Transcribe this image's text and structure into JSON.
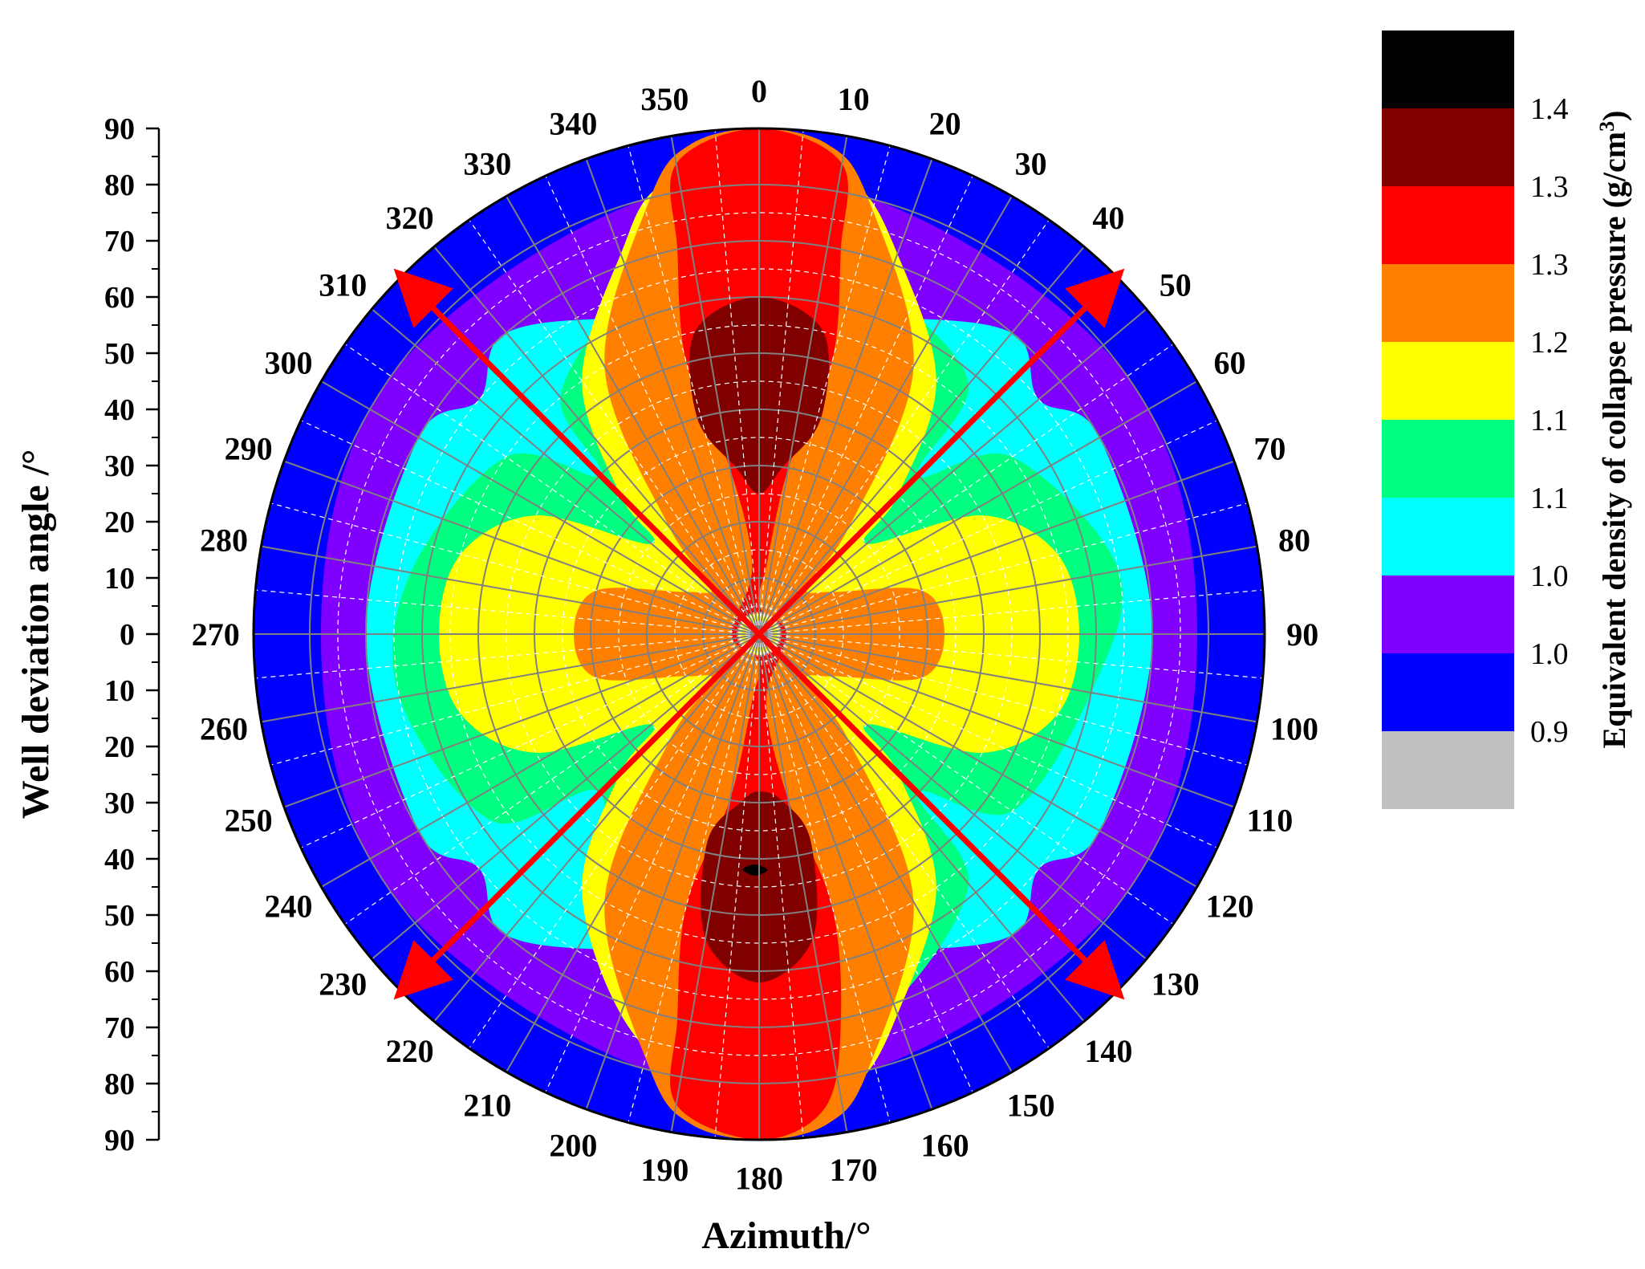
{
  "chart_data": {
    "type": "heatmap",
    "subtype": "polar-contour",
    "title": "",
    "xlabel": "Azimuth/°",
    "ylabel": "Well deviation angle /°",
    "colorbar_label": "Equivalent density of collapse pressure (g/cm",
    "colorbar_label_sup": "3",
    "colorbar_label_tail": ")",
    "azimuth_ticks": [
      "0",
      "10",
      "20",
      "30",
      "40",
      "50",
      "60",
      "70",
      "80",
      "90",
      "100",
      "110",
      "120",
      "130",
      "140",
      "150",
      "160",
      "170",
      "180",
      "190",
      "200",
      "210",
      "220",
      "230",
      "240",
      "250",
      "260",
      "270",
      "280",
      "290",
      "300",
      "310",
      "320",
      "330",
      "340",
      "350"
    ],
    "deviation_ticks": [
      "90",
      "80",
      "70",
      "60",
      "50",
      "40",
      "30",
      "20",
      "10",
      "0",
      "10",
      "20",
      "30",
      "40",
      "50",
      "60",
      "70",
      "80",
      "90"
    ],
    "deviation_range": [
      0,
      90
    ],
    "colorbar_levels": [
      "1.4",
      "1.3",
      "1.3",
      "1.2",
      "1.1",
      "1.1",
      "1.0",
      "1.0",
      "0.9"
    ],
    "colorbar_colors": [
      "#000000",
      "#800000",
      "#ff0000",
      "#ff8000",
      "#ffff00",
      "#00ff80",
      "#00ffff",
      "#8000ff",
      "#0000ff",
      "#c0c0c0"
    ],
    "arrows_azimuth_deg": [
      45,
      135,
      225,
      315
    ],
    "arrow_color": "#ff0000",
    "grid": true,
    "regions": [
      {
        "level": 8,
        "points": [
          [
            90,
            0
          ],
          [
            90,
            90
          ],
          [
            90,
            180
          ],
          [
            90,
            270
          ]
        ]
      },
      {
        "level": 7,
        "points": [
          [
            80,
            15
          ],
          [
            80,
            55
          ],
          [
            78,
            90
          ],
          [
            80,
            125
          ],
          [
            80,
            165
          ],
          [
            80,
            195
          ],
          [
            80,
            235
          ],
          [
            78,
            270
          ],
          [
            80,
            305
          ],
          [
            80,
            345
          ]
        ]
      },
      {
        "level": 6,
        "points": [
          [
            60,
            20
          ],
          [
            70,
            40
          ],
          [
            65,
            50
          ],
          [
            70,
            60
          ],
          [
            70,
            90
          ],
          [
            70,
            120
          ],
          [
            65,
            130
          ],
          [
            70,
            140
          ],
          [
            60,
            160
          ],
          [
            60,
            200
          ],
          [
            70,
            220
          ],
          [
            65,
            230
          ],
          [
            70,
            240
          ],
          [
            70,
            270
          ],
          [
            70,
            300
          ],
          [
            65,
            310
          ],
          [
            70,
            320
          ],
          [
            60,
            340
          ]
        ]
      },
      {
        "level": 5,
        "points": [
          [
            75,
            7
          ],
          [
            65,
            22
          ],
          [
            58,
            40
          ],
          [
            40,
            45
          ],
          [
            55,
            55
          ],
          [
            65,
            80
          ],
          [
            60,
            100
          ],
          [
            55,
            125
          ],
          [
            40,
            135
          ],
          [
            58,
            140
          ],
          [
            70,
            160
          ],
          [
            75,
            175
          ],
          [
            70,
            190
          ],
          [
            60,
            210
          ],
          [
            40,
            225
          ],
          [
            58,
            235
          ],
          [
            65,
            260
          ],
          [
            63,
            280
          ],
          [
            55,
            305
          ],
          [
            40,
            315
          ],
          [
            55,
            320
          ],
          [
            65,
            338
          ],
          [
            75,
            353
          ]
        ]
      },
      {
        "level": 4,
        "points": [
          [
            85,
            2
          ],
          [
            82,
            12
          ],
          [
            72,
            20
          ],
          [
            55,
            35
          ],
          [
            35,
            45
          ],
          [
            25,
            50
          ],
          [
            45,
            62
          ],
          [
            55,
            75
          ],
          [
            57,
            90
          ],
          [
            55,
            105
          ],
          [
            45,
            118
          ],
          [
            25,
            130
          ],
          [
            35,
            135
          ],
          [
            55,
            145
          ],
          [
            72,
            160
          ],
          [
            82,
            168
          ],
          [
            85,
            178
          ],
          [
            82,
            188
          ],
          [
            72,
            200
          ],
          [
            55,
            215
          ],
          [
            35,
            225
          ],
          [
            25,
            230
          ],
          [
            45,
            242
          ],
          [
            55,
            255
          ],
          [
            57,
            270
          ],
          [
            55,
            285
          ],
          [
            45,
            298
          ],
          [
            25,
            310
          ],
          [
            35,
            315
          ],
          [
            55,
            325
          ],
          [
            72,
            340
          ],
          [
            82,
            348
          ]
        ]
      },
      {
        "level": 3,
        "points": [
          [
            90,
            0
          ],
          [
            88,
            8
          ],
          [
            80,
            14
          ],
          [
            55,
            30
          ],
          [
            25,
            40
          ],
          [
            12,
            45
          ],
          [
            15,
            60
          ],
          [
            30,
            75
          ],
          [
            33,
            90
          ],
          [
            30,
            105
          ],
          [
            15,
            120
          ],
          [
            12,
            135
          ],
          [
            25,
            140
          ],
          [
            55,
            150
          ],
          [
            80,
            166
          ],
          [
            88,
            172
          ],
          [
            90,
            180
          ],
          [
            88,
            188
          ],
          [
            80,
            194
          ],
          [
            55,
            210
          ],
          [
            25,
            220
          ],
          [
            12,
            225
          ],
          [
            15,
            240
          ],
          [
            30,
            255
          ],
          [
            33,
            270
          ],
          [
            30,
            285
          ],
          [
            15,
            300
          ],
          [
            12,
            315
          ],
          [
            25,
            320
          ],
          [
            55,
            330
          ],
          [
            80,
            346
          ],
          [
            88,
            352
          ]
        ]
      },
      {
        "level": 2,
        "points": [
          [
            90,
            0
          ],
          [
            85,
            10
          ],
          [
            70,
            12
          ],
          [
            50,
            15
          ],
          [
            30,
            10
          ],
          [
            12,
            6
          ],
          [
            5,
            0
          ],
          [
            5,
            90
          ],
          [
            12,
            174
          ],
          [
            30,
            170
          ],
          [
            50,
            165
          ],
          [
            70,
            168
          ],
          [
            85,
            172
          ],
          [
            90,
            180
          ],
          [
            85,
            190
          ],
          [
            70,
            192
          ],
          [
            50,
            195
          ],
          [
            30,
            190
          ],
          [
            12,
            186
          ],
          [
            5,
            180
          ],
          [
            5,
            270
          ],
          [
            12,
            354
          ],
          [
            30,
            350
          ],
          [
            50,
            345
          ],
          [
            70,
            348
          ],
          [
            85,
            350
          ]
        ]
      },
      {
        "level": 1,
        "points": [
          [
            60,
            0
          ],
          [
            55,
            12
          ],
          [
            40,
            16
          ],
          [
            30,
            8
          ],
          [
            25,
            0
          ],
          [
            30,
            352
          ],
          [
            40,
            344
          ],
          [
            55,
            348
          ]
        ]
      },
      {
        "level": 1,
        "points": [
          [
            62,
            180
          ],
          [
            55,
            190
          ],
          [
            38,
            194
          ],
          [
            30,
            186
          ],
          [
            28,
            180
          ],
          [
            30,
            172
          ],
          [
            38,
            166
          ],
          [
            55,
            170
          ]
        ]
      },
      {
        "level": 0,
        "points": [
          [
            42,
            178
          ],
          [
            43,
            181
          ],
          [
            42,
            184
          ],
          [
            41,
            181
          ]
        ]
      }
    ]
  }
}
